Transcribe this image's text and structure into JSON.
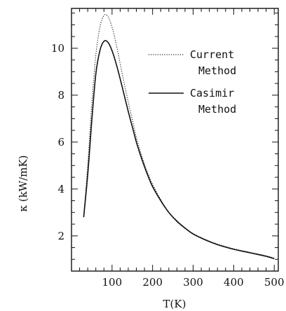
{
  "chart_data": {
    "type": "line",
    "title": "",
    "xlabel": "T(K)",
    "ylabel": "κ (kW/mK)",
    "xlim": [
      0,
      510
    ],
    "ylim": [
      0.5,
      11.7
    ],
    "xticks": [
      100,
      200,
      300,
      400,
      500
    ],
    "yticks": [
      2,
      4,
      6,
      8,
      10
    ],
    "grid": false,
    "legend_position": "upper-right",
    "series": [
      {
        "name": "Current Method",
        "style": "dotted",
        "color": "#222222",
        "x": [
          30,
          40,
          50,
          60,
          70,
          80,
          90,
          100,
          110,
          120,
          130,
          140,
          150,
          160,
          170,
          180,
          190,
          200,
          220,
          240,
          260,
          280,
          300,
          330,
          360,
          400,
          440,
          480,
          500
        ],
        "y": [
          2.8,
          5.0,
          7.6,
          9.7,
          10.9,
          11.4,
          11.35,
          10.9,
          10.2,
          9.35,
          8.5,
          7.7,
          6.95,
          6.2,
          5.6,
          5.05,
          4.6,
          4.2,
          3.55,
          3.0,
          2.65,
          2.35,
          2.1,
          1.85,
          1.65,
          1.45,
          1.3,
          1.15,
          1.05
        ]
      },
      {
        "name": "Casimir Method",
        "style": "solid",
        "color": "#111111",
        "x": [
          30,
          40,
          50,
          60,
          70,
          80,
          90,
          100,
          110,
          120,
          130,
          140,
          150,
          160,
          170,
          180,
          190,
          200,
          220,
          240,
          260,
          280,
          300,
          330,
          360,
          400,
          440,
          480,
          500
        ],
        "y": [
          2.8,
          4.6,
          6.9,
          8.9,
          9.9,
          10.3,
          10.25,
          9.9,
          9.35,
          8.7,
          8.0,
          7.3,
          6.65,
          6.0,
          5.45,
          4.95,
          4.5,
          4.1,
          3.5,
          3.0,
          2.62,
          2.33,
          2.08,
          1.83,
          1.63,
          1.43,
          1.28,
          1.13,
          1.03
        ]
      }
    ]
  },
  "legend": {
    "current_line1": "Current",
    "current_line2": "Method",
    "casimir_line1": "Casimir",
    "casimir_line2": "Method"
  }
}
